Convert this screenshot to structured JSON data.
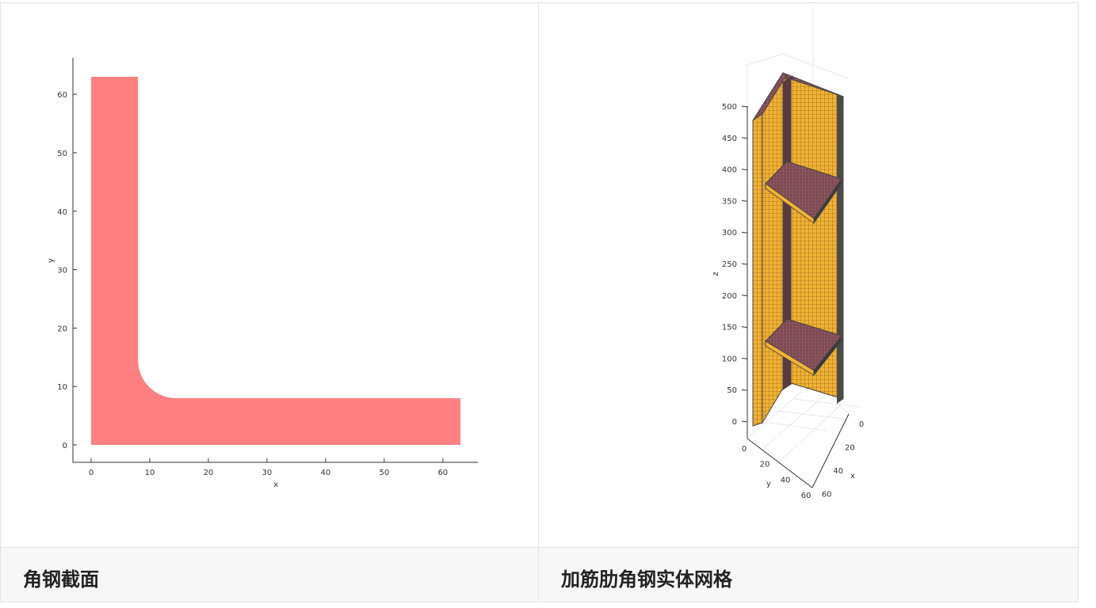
{
  "cards": [
    {
      "caption": "角钢截面",
      "chart_data": {
        "type": "area",
        "title": "",
        "xlabel": "x",
        "ylabel": "y",
        "xlim": [
          -3,
          66
        ],
        "ylim": [
          -3,
          66
        ],
        "x_ticks": [
          "0",
          "10",
          "20",
          "30",
          "40",
          "50",
          "60"
        ],
        "y_ticks": [
          "0",
          "10",
          "20",
          "30",
          "40",
          "50",
          "60"
        ],
        "fill_color": "#ff8080",
        "shape_points": [
          [
            0,
            0
          ],
          [
            63,
            0
          ],
          [
            63,
            8
          ],
          [
            14.5,
            8
          ],
          [
            8,
            14.5
          ],
          [
            8,
            63
          ],
          [
            0,
            63
          ]
        ]
      }
    },
    {
      "caption": "加筋肋角钢实体网格",
      "chart_data": {
        "type": "other",
        "xlabel": "x",
        "ylabel": "y",
        "zlabel": "z",
        "z_ticks": [
          "0",
          "50",
          "100",
          "150",
          "200",
          "250",
          "300",
          "350",
          "400",
          "450",
          "500"
        ],
        "y_ticks": [
          "0",
          "20",
          "40",
          "60"
        ],
        "x_ticks": [
          "0",
          "20",
          "40",
          "60"
        ],
        "mesh_color": "#f2b233",
        "rib_color": "#7a4a52"
      }
    }
  ]
}
